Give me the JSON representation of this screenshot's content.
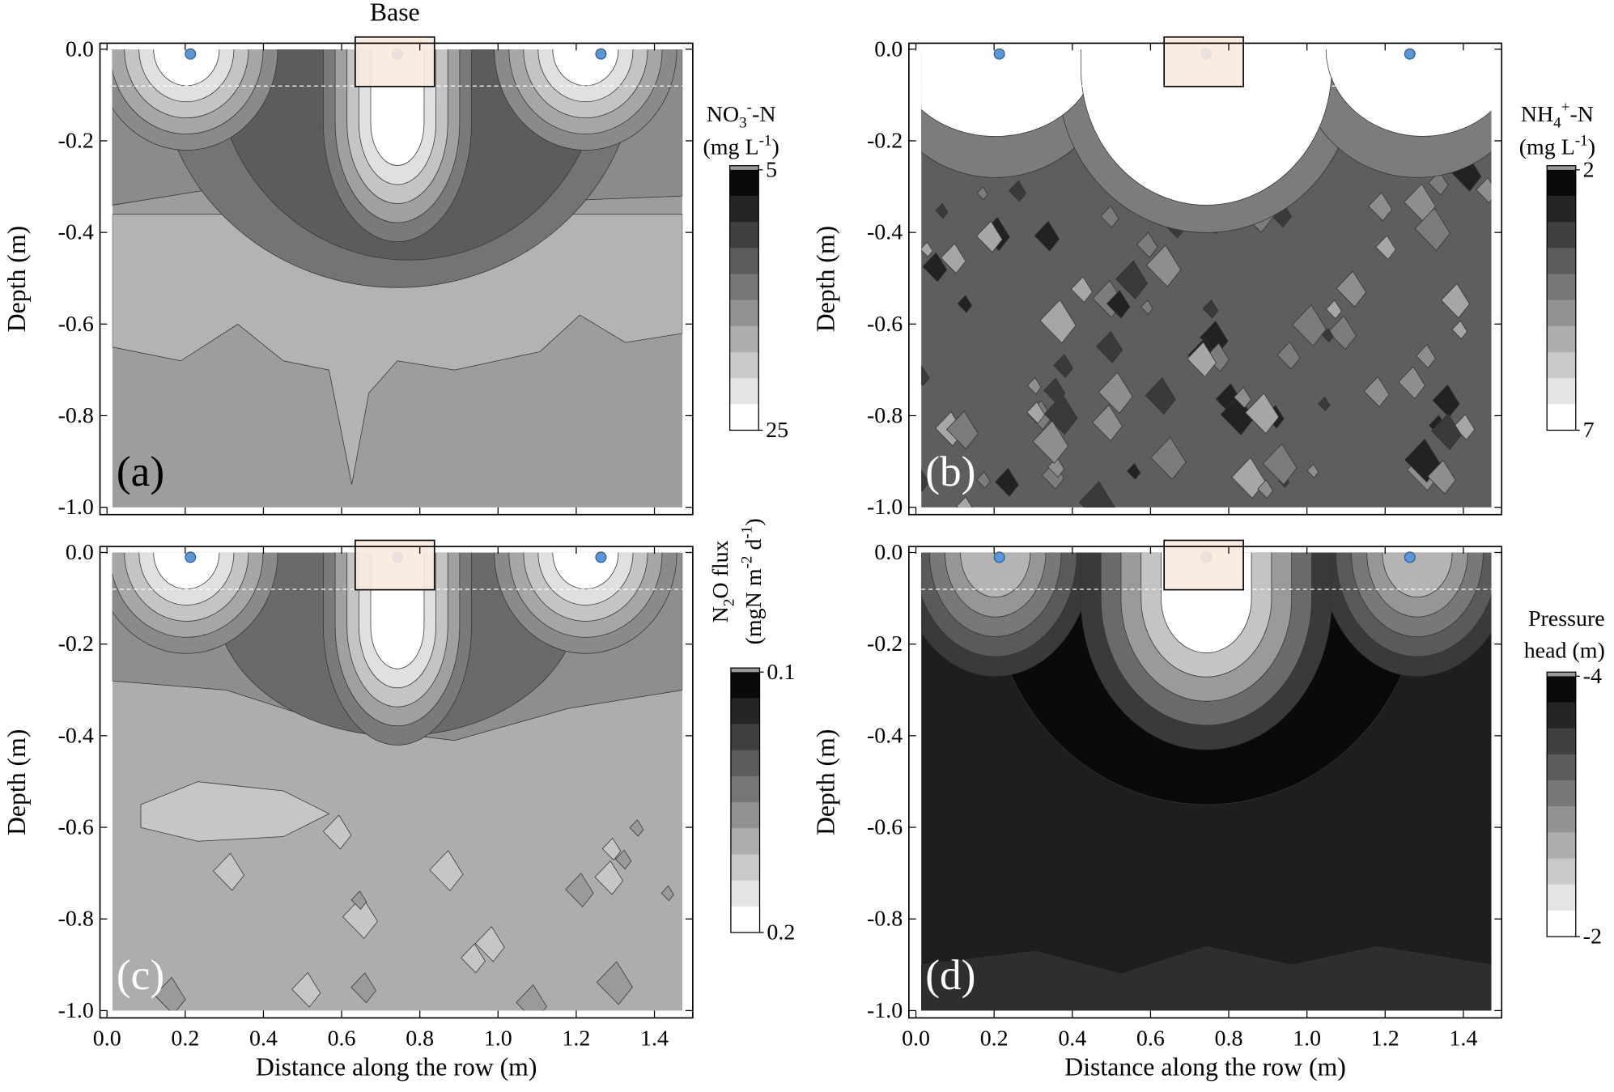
{
  "chart_data": [
    {
      "type": "contour",
      "title": "Base",
      "panel_label": "(a)",
      "label_color": "#000000",
      "ylabel": "Depth (m)",
      "xlim": [
        -0.018,
        1.498
      ],
      "ylim": [
        -1.016,
        0.013
      ],
      "xticks": [
        0,
        0.2,
        0.4,
        0.6,
        0.8,
        1,
        1.2,
        1.4
      ],
      "yticks": [
        {
          "value": 0,
          "label": "0.0"
        },
        -0.2,
        -0.4,
        -0.6,
        -0.8,
        {
          "value": -1,
          "label": "-1.0"
        }
      ],
      "colorbar": {
        "label": [
          [
            "NO",
            "3",
            "-",
            "-N"
          ],
          [
            "(mg L",
            "-1",
            ")"
          ]
        ],
        "ticks": [
          5,
          25
        ]
      }
    },
    {
      "type": "contour",
      "panel_label": "(b)",
      "label_color": "#ffffff",
      "ylabel": "Depth (m)",
      "xlim": [
        -0.018,
        1.498
      ],
      "ylim": [
        -1.016,
        0.013
      ],
      "xticks": [
        0,
        0.2,
        0.4,
        0.6,
        0.8,
        1,
        1.2,
        1.4
      ],
      "yticks": [
        {
          "value": 0,
          "label": "0.0"
        },
        -0.2,
        -0.4,
        -0.6,
        -0.8,
        {
          "value": -1,
          "label": "-1.0"
        }
      ],
      "colorbar": {
        "label": [
          [
            "NH",
            "4",
            "+",
            "-N"
          ],
          [
            "(mg L",
            "-1",
            ")"
          ]
        ],
        "ticks": [
          2,
          7
        ]
      }
    },
    {
      "type": "contour",
      "panel_label": "(c)",
      "label_color": "#ffffff",
      "ylabel": "Depth (m)",
      "xlabel": "Distance along the row (m)",
      "xlim": [
        -0.018,
        1.498
      ],
      "ylim": [
        -1.016,
        0.013
      ],
      "xticks": [
        {
          "value": 0,
          "label": "0.0"
        },
        0.2,
        0.4,
        0.6,
        0.8,
        {
          "value": 1,
          "label": "1.0"
        },
        1.2,
        1.4
      ],
      "yticks": [
        {
          "value": 0,
          "label": "0.0"
        },
        -0.2,
        -0.4,
        -0.6,
        -0.8,
        {
          "value": -1,
          "label": "-1.0"
        }
      ],
      "colorbar": {
        "label": [
          [
            "N",
            "2",
            "O flux"
          ],
          [
            "(mgN m",
            "-2",
            " d",
            "-1",
            ")"
          ]
        ],
        "ticks": [
          0.1,
          0.2
        ]
      }
    },
    {
      "type": "contour",
      "panel_label": "(d)",
      "label_color": "#ffffff",
      "ylabel": "Depth (m)",
      "xlabel": "Distance along the row (m)",
      "xlim": [
        -0.018,
        1.498
      ],
      "ylim": [
        -1.016,
        0.013
      ],
      "xticks": [
        {
          "value": 0,
          "label": "0.0"
        },
        0.2,
        0.4,
        0.6,
        0.8,
        {
          "value": 1,
          "label": "1.0"
        },
        1.2,
        1.4
      ],
      "yticks": [
        {
          "value": 0,
          "label": "0.0"
        },
        -0.2,
        -0.4,
        -0.6,
        -0.8,
        {
          "value": -1,
          "label": "-1.0"
        }
      ],
      "colorbar": {
        "label": [
          [
            "Pressure"
          ],
          [
            "head (m)"
          ]
        ],
        "ticks": [
          -4,
          -2
        ]
      }
    }
  ]
}
